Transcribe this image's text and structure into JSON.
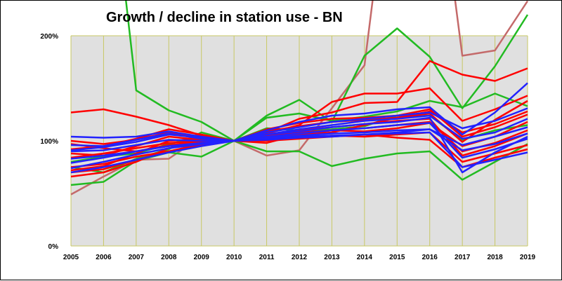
{
  "chart_data": {
    "type": "line",
    "title": "Growth / decline in station use - BN",
    "xlabel": "",
    "ylabel": "",
    "x": [
      "2005",
      "2006",
      "2007",
      "2008",
      "2009",
      "2010",
      "2011",
      "2012",
      "2013",
      "2014",
      "2015",
      "2016",
      "2017",
      "2018",
      "2019"
    ],
    "y_ticks": [
      "0%",
      "100%",
      "200%"
    ],
    "ylim": [
      0,
      200
    ],
    "grid": "vertical",
    "legend": "none",
    "colors": {
      "plot_background": "#e0e0e0",
      "grid": "#c8c864",
      "red": "#ff0000",
      "blue": "#2222ff",
      "green": "#22bb22",
      "brown": "#c46a6a"
    },
    "series": [
      {
        "color": "brown",
        "values": [
          49,
          66,
          82,
          83,
          104,
          100,
          86,
          91,
          131,
          172,
          null,
          null,
          181,
          186,
          233
        ]
      },
      {
        "color": "green",
        "values": [
          null,
          null,
          148,
          129,
          118,
          100,
          124,
          139,
          118,
          181,
          207,
          180,
          131,
          171,
          220
        ]
      },
      {
        "color": "green",
        "values": [
          58,
          61,
          81,
          89,
          85,
          100,
          122,
          126,
          119,
          123,
          128,
          138,
          132,
          145,
          133
        ]
      },
      {
        "color": "green",
        "values": [
          75,
          70,
          83,
          92,
          108,
          100,
          90,
          90,
          76,
          83,
          88,
          90,
          63,
          80,
          97
        ]
      },
      {
        "color": "green",
        "values": [
          80,
          85,
          88,
          97,
          104,
          100,
          112,
          110,
          111,
          114,
          124,
          124,
          101,
          110,
          115
        ]
      },
      {
        "color": "red",
        "values": [
          127,
          130,
          123,
          115,
          105,
          100,
          107,
          115,
          137,
          145,
          145,
          150,
          119,
          130,
          143
        ]
      },
      {
        "color": "red",
        "values": [
          72,
          76,
          88,
          100,
          102,
          100,
          108,
          121,
          127,
          136,
          137,
          176,
          163,
          157,
          169
        ]
      },
      {
        "color": "red",
        "values": [
          100,
          97,
          101,
          108,
          104,
          100,
          111,
          117,
          121,
          122,
          124,
          130,
          104,
          113,
          125
        ]
      },
      {
        "color": "red",
        "values": [
          70,
          73,
          82,
          90,
          97,
          100,
          103,
          106,
          110,
          112,
          115,
          118,
          90,
          98,
          110
        ]
      },
      {
        "color": "red",
        "values": [
          84,
          88,
          93,
          98,
          100,
          100,
          101,
          103,
          105,
          104,
          106,
          108,
          80,
          88,
          96
        ]
      },
      {
        "color": "red",
        "values": [
          92,
          95,
          102,
          111,
          106,
          100,
          104,
          108,
          110,
          109,
          112,
          117,
          95,
          104,
          118
        ]
      },
      {
        "color": "red",
        "values": [
          66,
          70,
          80,
          93,
          98,
          100,
          100,
          102,
          104,
          106,
          103,
          101,
          75,
          84,
          92
        ]
      },
      {
        "color": "red",
        "values": [
          97,
          93,
          90,
          96,
          99,
          100,
          109,
          114,
          118,
          120,
          122,
          128,
          108,
          116,
          128
        ]
      },
      {
        "color": "red",
        "values": [
          75,
          78,
          85,
          90,
          96,
          100,
          105,
          110,
          113,
          116,
          119,
          121,
          86,
          95,
          107
        ]
      },
      {
        "color": "red",
        "values": [
          88,
          86,
          95,
          104,
          101,
          100,
          98,
          106,
          108,
          115,
          122,
          126,
          99,
          120,
          138
        ]
      },
      {
        "color": "blue",
        "values": [
          104,
          103,
          104,
          109,
          104,
          100,
          110,
          118,
          124,
          126,
          130,
          132,
          106,
          127,
          155
        ]
      },
      {
        "color": "blue",
        "values": [
          79,
          84,
          90,
          95,
          98,
          100,
          106,
          109,
          113,
          116,
          118,
          122,
          70,
          89,
          104
        ]
      },
      {
        "color": "blue",
        "values": [
          90,
          91,
          96,
          101,
          100,
          100,
          102,
          104,
          105,
          106,
          108,
          111,
          96,
          104,
          113
        ]
      },
      {
        "color": "blue",
        "values": [
          74,
          80,
          87,
          93,
          97,
          100,
          104,
          107,
          110,
          112,
          115,
          117,
          84,
          92,
          102
        ]
      },
      {
        "color": "blue",
        "values": [
          96,
          95,
          101,
          107,
          102,
          100,
          108,
          113,
          118,
          121,
          124,
          127,
          112,
          119,
          131
        ]
      },
      {
        "color": "blue",
        "values": [
          83,
          86,
          90,
          95,
          97,
          100,
          103,
          105,
          107,
          108,
          110,
          111,
          91,
          97,
          107
        ]
      },
      {
        "color": "blue",
        "values": [
          91,
          94,
          99,
          106,
          103,
          100,
          106,
          111,
          115,
          119,
          121,
          124,
          102,
          108,
          121
        ]
      },
      {
        "color": "blue",
        "values": [
          70,
          75,
          82,
          89,
          95,
          100,
          101,
          103,
          104,
          106,
          107,
          108,
          75,
          82,
          89
        ]
      }
    ]
  }
}
